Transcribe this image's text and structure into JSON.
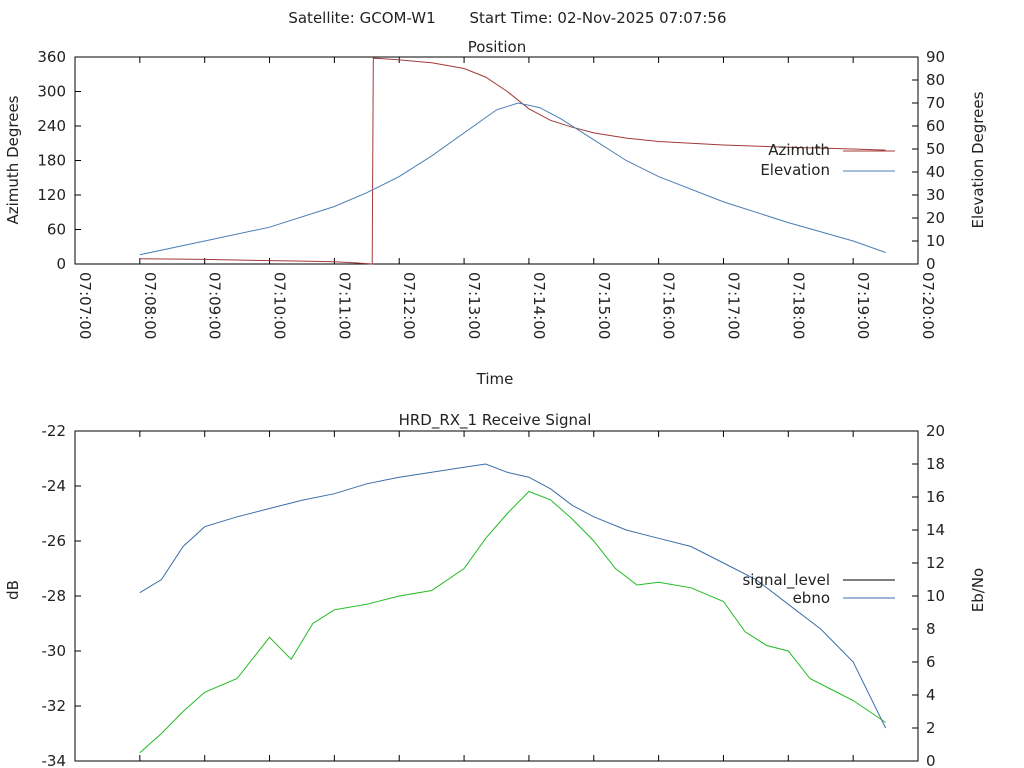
{
  "header": {
    "satellite_label": "Satellite: GCOM-W1",
    "start_label": "Start Time: 02-Nov-2025 07:07:56"
  },
  "colors": {
    "azimuth": "#a33a3a",
    "elevation": "#4a7fb5",
    "signal_level": "#22bb22",
    "ebno": "#3a6fa8",
    "axis": "#000000"
  },
  "chart_data": [
    {
      "type": "line",
      "title": "Position",
      "xlabel": "Time",
      "ylabel": "Azimuth Degrees",
      "y2label": "Elevation Degrees",
      "xlim": [
        "07:07:00",
        "07:20:00"
      ],
      "ylim": [
        0,
        360
      ],
      "y2lim": [
        0,
        90
      ],
      "x_ticks": [
        "07:07:00",
        "07:08:00",
        "07:09:00",
        "07:10:00",
        "07:11:00",
        "07:12:00",
        "07:13:00",
        "07:14:00",
        "07:15:00",
        "07:16:00",
        "07:17:00",
        "07:18:00",
        "07:19:00",
        "07:20:00"
      ],
      "y_ticks": [
        0,
        60,
        120,
        180,
        240,
        300,
        360
      ],
      "y2_ticks": [
        0,
        10,
        20,
        30,
        40,
        50,
        60,
        70,
        80,
        90
      ],
      "legend_position": "right",
      "series": [
        {
          "name": "Azimuth",
          "axis": "left",
          "x": [
            "07:08:00",
            "07:09:00",
            "07:10:00",
            "07:10:30",
            "07:11:00",
            "07:11:20",
            "07:11:35",
            "07:11:36",
            "07:11:45",
            "07:12:00",
            "07:12:30",
            "07:13:00",
            "07:13:20",
            "07:13:40",
            "07:14:00",
            "07:14:20",
            "07:14:40",
            "07:15:00",
            "07:15:30",
            "07:16:00",
            "07:17:00",
            "07:18:00",
            "07:19:00",
            "07:19:30"
          ],
          "values": [
            9,
            8,
            6,
            5,
            4,
            2,
            0,
            358,
            357,
            355,
            350,
            340,
            325,
            300,
            270,
            250,
            238,
            228,
            219,
            213,
            207,
            203,
            200,
            198
          ]
        },
        {
          "name": "Elevation",
          "axis": "right",
          "x": [
            "07:08:00",
            "07:09:00",
            "07:10:00",
            "07:11:00",
            "07:11:30",
            "07:12:00",
            "07:12:30",
            "07:13:00",
            "07:13:30",
            "07:13:50",
            "07:14:10",
            "07:14:30",
            "07:15:00",
            "07:15:30",
            "07:16:00",
            "07:17:00",
            "07:18:00",
            "07:19:00",
            "07:19:30"
          ],
          "values": [
            4,
            10,
            16,
            25,
            31,
            38,
            47,
            57,
            67,
            70,
            68,
            63,
            54,
            45,
            38,
            27,
            18,
            10,
            5
          ]
        }
      ]
    },
    {
      "type": "line",
      "title": "HRD_RX_1 Receive Signal",
      "ylabel": "dB",
      "y2label": "Eb/No",
      "xlim": [
        "07:07:00",
        "07:20:00"
      ],
      "ylim": [
        -34,
        -22
      ],
      "y2lim": [
        0,
        20
      ],
      "y_ticks": [
        -34,
        -32,
        -30,
        -28,
        -26,
        -24,
        -22
      ],
      "y2_ticks": [
        0,
        2,
        4,
        6,
        8,
        10,
        12,
        14,
        16,
        18,
        20
      ],
      "legend_position": "right",
      "series": [
        {
          "name": "signal_level",
          "axis": "left",
          "x": [
            "07:08:00",
            "07:08:20",
            "07:08:40",
            "07:09:00",
            "07:09:30",
            "07:10:00",
            "07:10:20",
            "07:10:40",
            "07:11:00",
            "07:11:30",
            "07:12:00",
            "07:12:30",
            "07:13:00",
            "07:13:20",
            "07:13:40",
            "07:14:00",
            "07:14:20",
            "07:14:40",
            "07:15:00",
            "07:15:20",
            "07:15:40",
            "07:16:00",
            "07:16:30",
            "07:17:00",
            "07:17:20",
            "07:17:40",
            "07:18:00",
            "07:18:20",
            "07:18:40",
            "07:19:00",
            "07:19:30"
          ],
          "values": [
            -33.7,
            -33.0,
            -32.2,
            -31.5,
            -31.0,
            -29.5,
            -30.3,
            -29.0,
            -28.5,
            -28.3,
            -28.0,
            -27.8,
            -27.0,
            -25.9,
            -25.0,
            -24.2,
            -24.5,
            -25.2,
            -26.0,
            -27.0,
            -27.6,
            -27.5,
            -27.7,
            -28.2,
            -29.3,
            -29.8,
            -30.0,
            -31.0,
            -31.4,
            -31.8,
            -32.6
          ]
        },
        {
          "name": "ebno",
          "axis": "right",
          "x": [
            "07:08:00",
            "07:08:20",
            "07:08:40",
            "07:09:00",
            "07:09:30",
            "07:10:00",
            "07:10:30",
            "07:11:00",
            "07:11:30",
            "07:12:00",
            "07:12:30",
            "07:13:00",
            "07:13:20",
            "07:13:40",
            "07:14:00",
            "07:14:20",
            "07:14:40",
            "07:15:00",
            "07:15:30",
            "07:16:00",
            "07:16:30",
            "07:17:00",
            "07:17:30",
            "07:18:00",
            "07:18:30",
            "07:19:00",
            "07:19:30"
          ],
          "values": [
            10.2,
            11.0,
            13.0,
            14.2,
            14.8,
            15.3,
            15.8,
            16.2,
            16.8,
            17.2,
            17.5,
            17.8,
            18.0,
            17.5,
            17.2,
            16.5,
            15.5,
            14.8,
            14.0,
            13.5,
            13.0,
            12.0,
            11.0,
            9.5,
            8.0,
            6.0,
            2.0
          ]
        }
      ]
    }
  ]
}
